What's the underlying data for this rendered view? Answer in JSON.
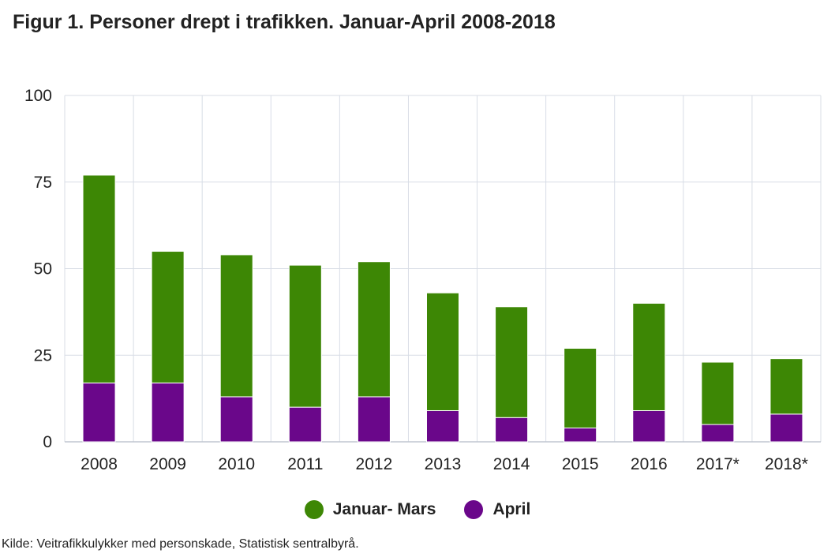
{
  "title": "Figur 1. Personer drept i trafikken. Januar-April 2008-2018",
  "source": "Kilde: Veitrafikkulykker med personskade, Statistisk sentralbyrå.",
  "colors": {
    "jan_mars": "#3d8705",
    "april": "#6a078a",
    "grid": "#d8dde6"
  },
  "chart_data": {
    "type": "bar",
    "stacked": true,
    "title": "Figur 1. Personer drept i trafikken. Januar-April 2008-2018",
    "categories": [
      "2008",
      "2009",
      "2010",
      "2011",
      "2012",
      "2013",
      "2014",
      "2015",
      "2016",
      "2017*",
      "2018*"
    ],
    "series": [
      {
        "name": "April",
        "color": "#6a078a",
        "values": [
          17,
          17,
          13,
          10,
          13,
          9,
          7,
          4,
          9,
          5,
          8
        ]
      },
      {
        "name": "Januar- Mars",
        "color": "#3d8705",
        "values": [
          60,
          38,
          41,
          41,
          39,
          34,
          32,
          23,
          31,
          18,
          16
        ]
      }
    ],
    "totals": [
      77,
      55,
      54,
      51,
      52,
      43,
      39,
      27,
      40,
      23,
      24
    ],
    "ylim": [
      0,
      100
    ],
    "yticks": [
      0,
      25,
      50,
      75,
      100
    ],
    "xlabel": "",
    "ylabel": "",
    "grid": true,
    "legend_position": "bottom"
  },
  "legend": [
    {
      "label": "Januar- Mars",
      "color": "#3d8705"
    },
    {
      "label": "April",
      "color": "#6a078a"
    }
  ]
}
